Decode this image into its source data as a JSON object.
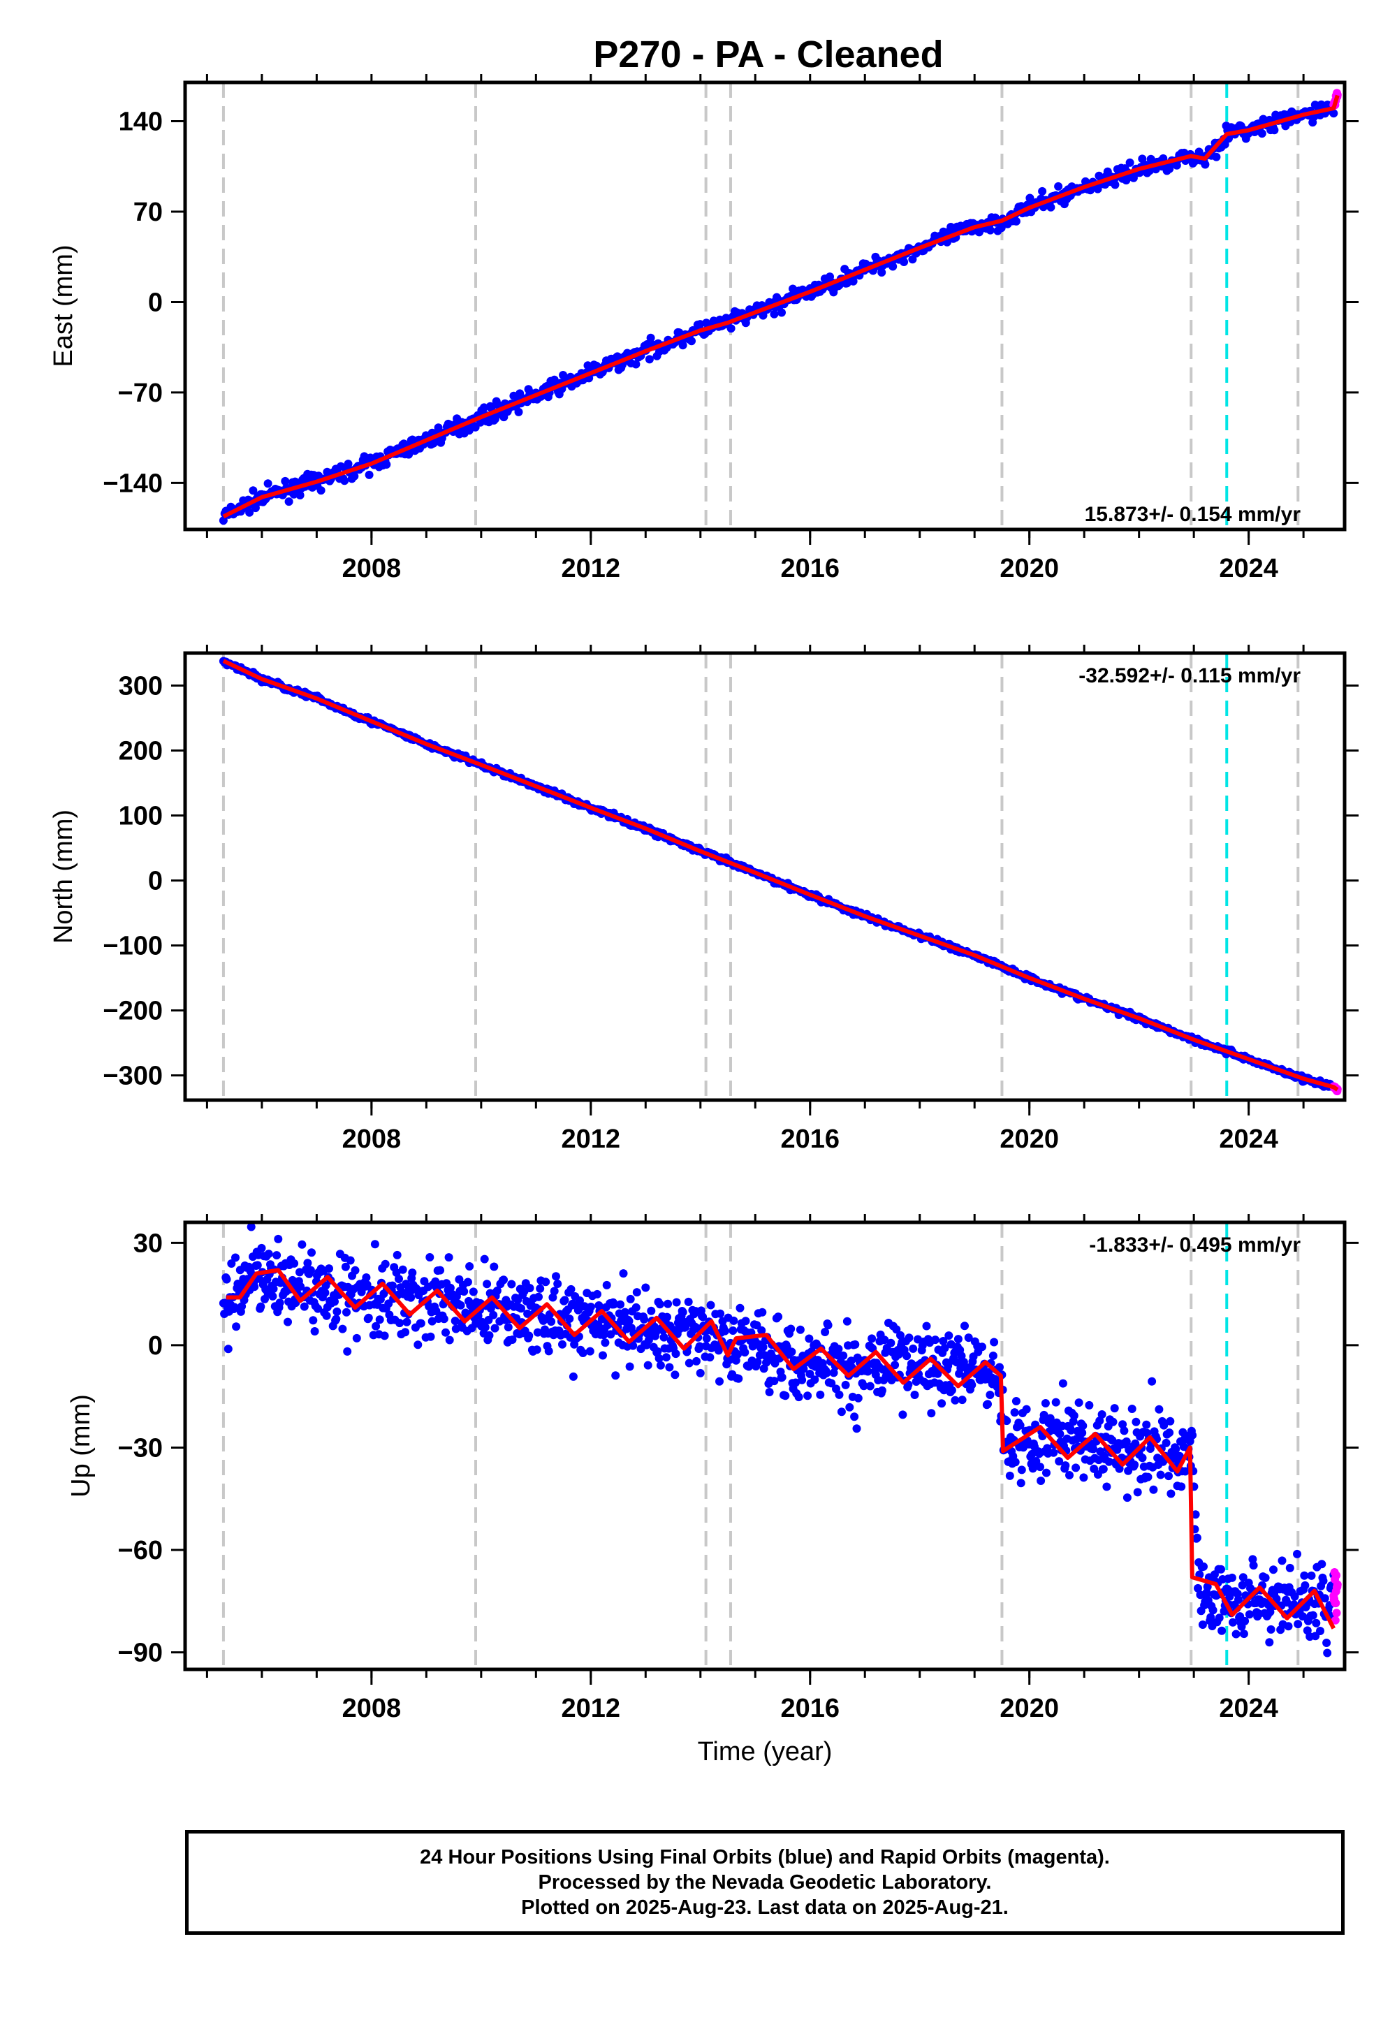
{
  "title": "P270  - PA - Cleaned",
  "colors": {
    "final_orbits": "#0000ff",
    "rapid_orbits": "#ff00ff",
    "model_fit": "#ff0000",
    "equipment_change": "#c8c8c8",
    "earthquake": "#00e5e5"
  },
  "event_lines": {
    "gray_dashed_years": [
      2005.3,
      2009.9,
      2014.1,
      2014.55,
      2019.5,
      2022.95,
      2024.9
    ],
    "cyan_dashed_years": [
      2023.6
    ]
  },
  "chart_data": [
    {
      "type": "scatter",
      "panel": "east",
      "ylabel": "East (mm)",
      "xlabel": "",
      "rate_label": "15.873+/- 0.154 mm/yr",
      "xlim": [
        2004.6,
        2025.75
      ],
      "ylim": [
        -176,
        170
      ],
      "xticks": [
        2008,
        2012,
        2016,
        2020,
        2024
      ],
      "yticks": [
        -140,
        -70,
        0,
        70,
        140
      ],
      "series": [
        {
          "name": "Final Orbits",
          "x": [
            2005.3,
            2006,
            2007,
            2008,
            2009,
            2010,
            2011,
            2012,
            2013,
            2014,
            2014.5,
            2015,
            2016,
            2017,
            2018,
            2019,
            2019.5,
            2020,
            2021,
            2022,
            2022.95,
            2023.2,
            2023.6,
            2024,
            2025,
            2025.55
          ],
          "y": [
            -166,
            -151,
            -139,
            -125,
            -107,
            -89,
            -72,
            -55,
            -38,
            -22,
            -16,
            -8,
            8,
            25,
            42,
            58,
            63,
            73,
            89,
            103,
            113,
            111,
            130,
            133,
            145,
            150
          ]
        },
        {
          "name": "Rapid Orbits",
          "x": [
            2025.55,
            2025.62
          ],
          "y": [
            152,
            160
          ]
        }
      ]
    },
    {
      "type": "scatter",
      "panel": "north",
      "ylabel": "North (mm)",
      "xlabel": "",
      "rate_label": "-32.592+/- 0.115 mm/yr",
      "xlim": [
        2004.6,
        2025.75
      ],
      "ylim": [
        -338,
        350
      ],
      "xticks": [
        2008,
        2012,
        2016,
        2020,
        2024
      ],
      "yticks": [
        -300,
        -200,
        -100,
        0,
        100,
        200,
        300
      ],
      "series": [
        {
          "name": "Final Orbits",
          "x": [
            2005.3,
            2006,
            2007,
            2008,
            2009,
            2010,
            2011,
            2012,
            2013,
            2014,
            2015,
            2016,
            2017,
            2018,
            2019,
            2020,
            2021,
            2022,
            2023,
            2024,
            2025,
            2025.55
          ],
          "y": [
            338,
            310,
            280,
            245,
            210,
            178,
            145,
            112,
            80,
            45,
            12,
            -22,
            -55,
            -85,
            -115,
            -150,
            -182,
            -212,
            -245,
            -275,
            -305,
            -318
          ]
        },
        {
          "name": "Rapid Orbits",
          "x": [
            2025.55,
            2025.62
          ],
          "y": [
            -318,
            -322
          ]
        }
      ]
    },
    {
      "type": "scatter",
      "panel": "up",
      "ylabel": "Up (mm)",
      "xlabel": "Time (year)",
      "rate_label": "-1.833+/- 0.495 mm/yr",
      "xlim": [
        2004.6,
        2025.75
      ],
      "ylim": [
        -95,
        36
      ],
      "xticks": [
        2008,
        2012,
        2016,
        2020,
        2024
      ],
      "yticks": [
        -90,
        -60,
        -30,
        0,
        30
      ],
      "series": [
        {
          "name": "Final Orbits",
          "x": [
            2005.3,
            2006,
            2007,
            2008,
            2009,
            2010,
            2011,
            2012,
            2013,
            2014,
            2014.6,
            2015.5,
            2016.5,
            2017.5,
            2018.5,
            2019.4,
            2019.6,
            2020.5,
            2021.5,
            2022.5,
            2022.95,
            2023.1,
            2024,
            2025,
            2025.55
          ],
          "y": [
            13,
            19,
            17,
            15,
            13,
            11,
            9,
            7,
            5,
            4,
            1,
            -3,
            -5,
            -6,
            -7,
            -7,
            -28,
            -27,
            -30,
            -32,
            -30,
            -73,
            -74,
            -75,
            -77
          ]
        },
        {
          "name": "Rapid Orbits",
          "x": [
            2025.55,
            2025.62
          ],
          "y": [
            -75,
            -70
          ]
        }
      ],
      "model_fit": {
        "x": [
          2005.35,
          2005.6,
          2005.9,
          2006.3,
          2006.7,
          2007.2,
          2007.7,
          2008.2,
          2008.7,
          2009.2,
          2009.7,
          2010.2,
          2010.7,
          2011.2,
          2011.7,
          2012.2,
          2012.7,
          2013.2,
          2013.7,
          2014.2,
          2014.5,
          2014.65,
          2015.2,
          2015.7,
          2016.2,
          2016.7,
          2017.2,
          2017.7,
          2018.2,
          2018.7,
          2019.2,
          2019.48,
          2019.52,
          2020.2,
          2020.7,
          2021.2,
          2021.7,
          2022.2,
          2022.7,
          2022.93,
          2022.97,
          2023.4,
          2023.7,
          2024.2,
          2024.7,
          2025.2,
          2025.55
        ],
        "y": [
          14,
          14,
          21,
          22,
          13,
          20,
          11,
          18,
          9,
          16,
          7,
          14,
          5,
          12,
          3,
          10,
          1,
          8,
          -1,
          7,
          -3,
          2,
          3,
          -7,
          -1,
          -9,
          -2,
          -11,
          -4,
          -12,
          -5,
          -9,
          -31,
          -24,
          -33,
          -26,
          -35,
          -27,
          -37,
          -30,
          -68,
          -70,
          -79,
          -71,
          -80,
          -72,
          -83
        ]
      }
    }
  ],
  "footer": {
    "line1": "24 Hour Positions Using Final Orbits (blue) and Rapid Orbits (magenta).",
    "line2": "Processed by the Nevada Geodetic Laboratory.",
    "line3": "Plotted on 2025-Aug-23. Last data on 2025-Aug-21."
  }
}
